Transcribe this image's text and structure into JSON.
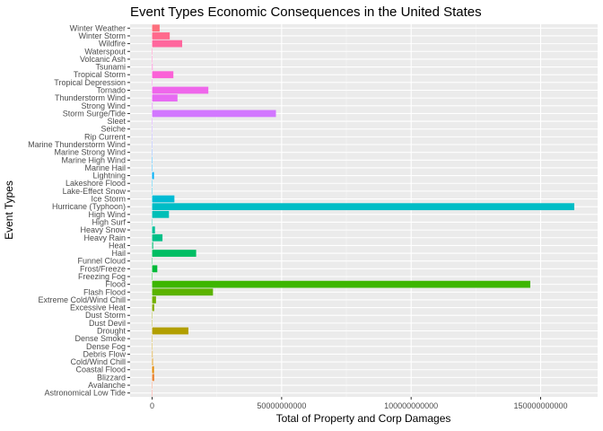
{
  "chart_data": {
    "type": "bar",
    "orientation": "horizontal",
    "title": "Event Types Economic Consequences in the United States",
    "xlabel": "Total of Property and Corp Damages",
    "ylabel": "Event Types",
    "xlim": [
      -8500000000,
      172000000000
    ],
    "x_ticks": [
      0,
      50000000000,
      100000000000,
      150000000000
    ],
    "x_tick_labels": [
      "0",
      "50000000000",
      "100000000000",
      "150000000000"
    ],
    "grid": true,
    "legend": "none",
    "categories": [
      "Astronomical Low Tide",
      "Avalanche",
      "Blizzard",
      "Coastal Flood",
      "Cold/Wind Chill",
      "Debris Flow",
      "Dense Fog",
      "Dense Smoke",
      "Drought",
      "Dust Devil",
      "Dust Storm",
      "Excessive Heat",
      "Extreme Cold/Wind Chill",
      "Flash Flood",
      "Flood",
      "Freezing Fog",
      "Frost/Freeze",
      "Funnel Cloud",
      "Hail",
      "Heat",
      "Heavy Rain",
      "Heavy Snow",
      "High Surf",
      "High Wind",
      "Hurricane (Typhoon)",
      "Ice Storm",
      "Lake-Effect Snow",
      "Lakeshore Flood",
      "Lightning",
      "Marine Hail",
      "Marine High Wind",
      "Marine Strong Wind",
      "Marine Thunderstorm Wind",
      "Rip Current",
      "Seiche",
      "Sleet",
      "Storm Surge/Tide",
      "Strong Wind",
      "Thunderstorm Wind",
      "Tornado",
      "Tropical Depression",
      "Tropical Storm",
      "Tsunami",
      "Volcanic Ash",
      "Waterspout",
      "Wildfire",
      "Winter Storm",
      "Winter Weather"
    ],
    "values": [
      10000000,
      10000000,
      800000000,
      700000000,
      300000000,
      200000000,
      10000000,
      10000000,
      14000000000,
      10000000,
      10000000,
      800000000,
      1500000000,
      23500000000,
      146000000000,
      10000000,
      2000000000,
      10000000,
      17000000000,
      400000000,
      4000000000,
      1100000000,
      100000000,
      6500000000,
      163000000000,
      8600000000,
      10000000,
      10000000,
      700000000,
      10000000,
      10000000,
      10000000,
      10000000,
      10000000,
      10000000,
      10000000,
      47800000000,
      200000000,
      9800000000,
      21700000000,
      10000000,
      8200000000,
      200000000,
      10000000,
      10000000,
      11600000000,
      6800000000,
      2900000000
    ],
    "colors": [
      "#F8766D",
      "#F27D52",
      "#EA8331",
      "#E38900",
      "#DB8E00",
      "#D39200",
      "#C99800",
      "#BF9C00",
      "#B29F00",
      "#A5A300",
      "#97A600",
      "#86AC00",
      "#72B000",
      "#5BB300",
      "#3DB600",
      "#00B812",
      "#00BA38",
      "#00BC4F",
      "#00BE63",
      "#00BF75",
      "#00C087",
      "#00C098",
      "#00C0A8",
      "#00BFB7",
      "#00BDC6",
      "#00BBD4",
      "#00B8E0",
      "#00B4EB",
      "#00B0F6",
      "#00ABFD",
      "#00A5FF",
      "#619CFF",
      "#8798FF",
      "#A193FF",
      "#B58DFF",
      "#C67CFF",
      "#D277FF",
      "#DD70F8",
      "#E76BF3",
      "#EF67EB",
      "#F664E2",
      "#FB61D7",
      "#FF61CC",
      "#FF62BC",
      "#FF64AD",
      "#FF669D",
      "#FF6A8C",
      "#FD6F7D"
    ]
  }
}
